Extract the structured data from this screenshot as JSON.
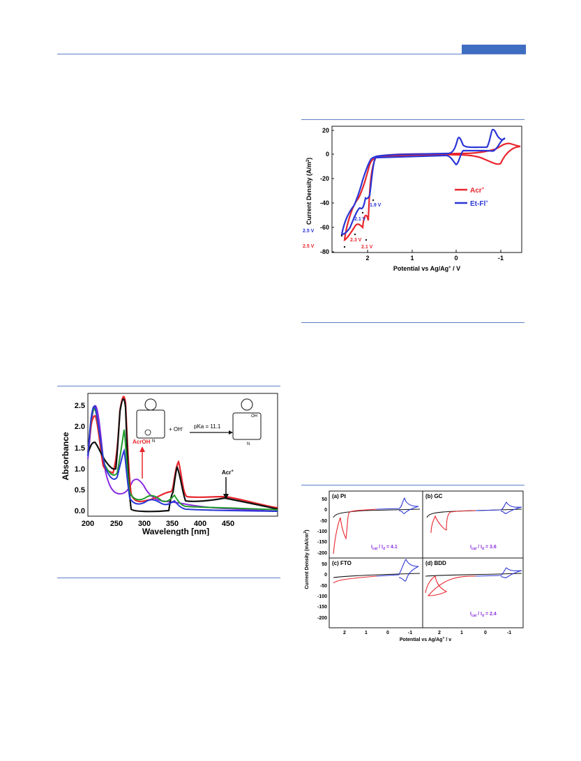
{
  "colors": {
    "rule": "#5b7fc4",
    "header_tab": "#3f6dc2",
    "red": "#e8262d",
    "blue": "#2a35d6",
    "black": "#111111",
    "green": "#1f9b2c",
    "purple": "#8a2be2"
  },
  "fig_uv": {
    "xlabel": "Wavelength [nm]",
    "ylabel": "Absorbance",
    "xticks": [
      "200",
      "250",
      "300",
      "350",
      "400",
      "450"
    ],
    "yticks": [
      "0.0",
      "0.5",
      "1.0",
      "1.5",
      "2.0",
      "2.5"
    ],
    "scheme_oh": "+ OH",
    "scheme_pka": "pKa = 11.1",
    "scheme_oh_label": "OH",
    "scheme_n_left": "N",
    "scheme_n_right": "N",
    "ann_acroh": "AcrOH",
    "ann_acr": "Acr",
    "ann_acr_sup": "+",
    "ann_oh_sup": "-"
  },
  "fig_cv": {
    "xlabel": "Potential vs Ag/Ag",
    "xlabel_sup": "+",
    "xlabel_end": " / V",
    "ylabel": "Current Density (A/m",
    "ylabel_sup": "2",
    "ylabel_end": ")",
    "xticks": [
      "2",
      "1",
      "0",
      "-1"
    ],
    "yticks": [
      "20",
      "0",
      "-20",
      "-40",
      "-60",
      "-80"
    ],
    "legend": [
      {
        "name": "Acr",
        "sup": "+"
      },
      {
        "name": "Et-Fl",
        "sup": "+"
      }
    ],
    "annotations_blue": [
      "1.9 V",
      "2.1 V",
      "2.5 V"
    ],
    "annotations_red": [
      "2.3 V",
      "2.1 V",
      "2.5 V"
    ]
  },
  "fig_panels": {
    "ylabel": "Current Density (mA/cm",
    "ylabel_sup": "2",
    "ylabel_end": ")",
    "xlabel": "Potential vs Ag/Ag",
    "xlabel_sup": "+",
    "xlabel_end": " / v",
    "xticks": [
      "2",
      "1",
      "0",
      "-1"
    ],
    "yticks_top": [
      "50",
      "0",
      "-50",
      "-100",
      "-150",
      "-200"
    ],
    "yticks_bottom": [
      "50",
      "0",
      "-50",
      "-100",
      "-150",
      "-200"
    ],
    "panel_a": "(a) Pt",
    "panel_b": "(b) GC",
    "panel_c": "(c) FTO",
    "panel_d": "(d) BDD",
    "ratio_prefix": "I",
    "ratio_sub1": "cat",
    "ratio_mid": " / I",
    "ratio_sub2": "d",
    "ratio_a": " = 4.1",
    "ratio_b": " = 3.6",
    "ratio_d": " = 2.4"
  }
}
